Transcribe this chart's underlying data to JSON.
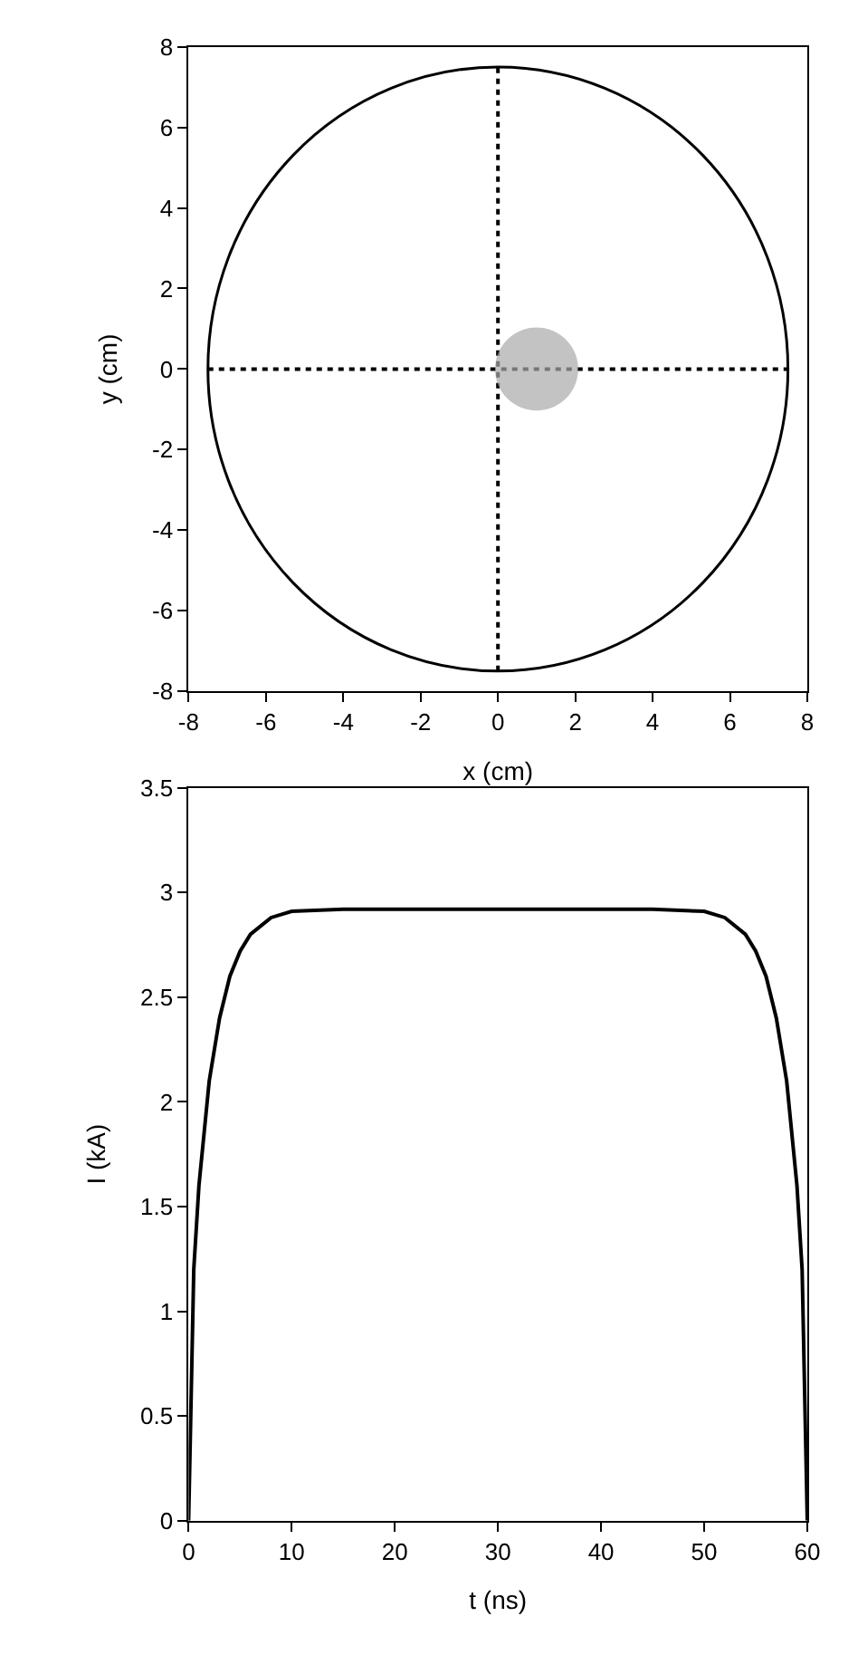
{
  "chart_data": [
    {
      "type": "line",
      "xlabel": "x (cm)",
      "ylabel": "y (cm)",
      "xlim": [
        -8,
        8
      ],
      "ylim": [
        -8,
        8
      ],
      "xticks": [
        -8,
        -6,
        -4,
        -2,
        0,
        2,
        4,
        6,
        8
      ],
      "yticks": [
        -8,
        -6,
        -4,
        -2,
        0,
        2,
        4,
        6,
        8
      ],
      "marker": "none",
      "series": [
        {
          "type": "line",
          "color": "#000000",
          "line_style": "dotted",
          "x": [
            0,
            0
          ],
          "values": [
            -7.5,
            7.5
          ]
        },
        {
          "type": "line",
          "color": "#000000",
          "line_style": "dotted",
          "x": [
            -7.5,
            7.5
          ],
          "values": [
            0,
            0
          ]
        },
        {
          "type": "bubble",
          "marker": "circle",
          "color": "#aaaaaa",
          "x": [
            1
          ],
          "values": [
            0
          ],
          "sizes": [
            1
          ]
        }
      ]
    },
    {
      "type": "line",
      "xlabel": "t (ns)",
      "ylabel": "I (kA)",
      "xlim": [
        0,
        60
      ],
      "ylim": [
        0,
        3.5
      ],
      "xticks": [
        0,
        10,
        20,
        30,
        40,
        50,
        60
      ],
      "yticks": [
        0,
        0.5,
        1,
        1.5,
        2,
        2.5,
        3,
        3.5
      ],
      "marker": "none",
      "series": [
        {
          "color": "#000000",
          "x": [
            0,
            0.5,
            1,
            2,
            3,
            4,
            5,
            6,
            8,
            10,
            15,
            20,
            30,
            40,
            45,
            50,
            52,
            54,
            55,
            56,
            57,
            58,
            59,
            59.5,
            60
          ],
          "values": [
            0,
            1.2,
            1.6,
            2.1,
            2.4,
            2.6,
            2.72,
            2.8,
            2.88,
            2.91,
            2.92,
            2.92,
            2.92,
            2.92,
            2.92,
            2.91,
            2.88,
            2.8,
            2.72,
            2.6,
            2.4,
            2.1,
            1.6,
            1.2,
            0
          ]
        }
      ]
    }
  ]
}
